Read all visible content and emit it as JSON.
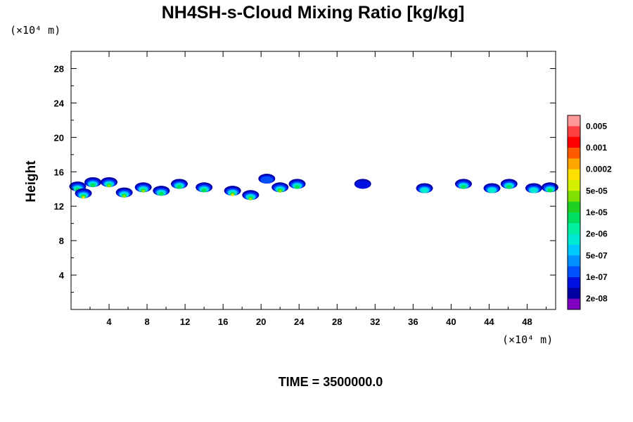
{
  "chart_data": {
    "type": "heatmap",
    "title": "NH4SH-s-Cloud Mixing Ratio [kg/kg]",
    "ylabel": "Height",
    "y_unit": "(×10⁴ m)",
    "x_unit": "(×10⁴ m)",
    "xlim": [
      0,
      51
    ],
    "ylim": [
      0,
      30
    ],
    "x_ticks": [
      "4",
      "8",
      "12",
      "16",
      "20",
      "24",
      "28",
      "32",
      "36",
      "40",
      "44",
      "48"
    ],
    "y_ticks": [
      "4",
      "8",
      "12",
      "16",
      "20",
      "24",
      "28"
    ],
    "colorbar": {
      "labels": [
        "0.005",
        "0.001",
        "0.0002",
        "5e-05",
        "1e-05",
        "2e-06",
        "5e-07",
        "1e-07",
        "2e-08"
      ],
      "colors_top_to_bottom": [
        "#ff9999",
        "#ff4040",
        "#ff0000",
        "#ff5a00",
        "#ffa500",
        "#ffe000",
        "#d4f000",
        "#80e000",
        "#20d020",
        "#00e060",
        "#00f0a0",
        "#00e8d0",
        "#00c8ff",
        "#0090ff",
        "#0050ff",
        "#0010e0",
        "#0000a0",
        "#8000c0"
      ]
    },
    "cloud_patches": [
      {
        "x": 0.7,
        "y": 14.3,
        "peak": 9
      },
      {
        "x": 1.3,
        "y": 13.5,
        "peak": 5
      },
      {
        "x": 2.3,
        "y": 14.8,
        "peak": 8
      },
      {
        "x": 4.0,
        "y": 14.8,
        "peak": 6
      },
      {
        "x": 5.6,
        "y": 13.6,
        "peak": 6
      },
      {
        "x": 7.6,
        "y": 14.2,
        "peak": 7
      },
      {
        "x": 9.5,
        "y": 13.8,
        "peak": 8
      },
      {
        "x": 11.4,
        "y": 14.6,
        "peak": 8
      },
      {
        "x": 14.0,
        "y": 14.2,
        "peak": 8
      },
      {
        "x": 17.0,
        "y": 13.8,
        "peak": 4
      },
      {
        "x": 18.9,
        "y": 13.3,
        "peak": 6
      },
      {
        "x": 20.6,
        "y": 15.2,
        "peak": 13
      },
      {
        "x": 22.0,
        "y": 14.2,
        "peak": 6
      },
      {
        "x": 23.8,
        "y": 14.6,
        "peak": 9
      },
      {
        "x": 30.7,
        "y": 14.6,
        "peak": 15
      },
      {
        "x": 37.2,
        "y": 14.1,
        "peak": 10
      },
      {
        "x": 41.3,
        "y": 14.6,
        "peak": 9
      },
      {
        "x": 44.3,
        "y": 14.1,
        "peak": 10
      },
      {
        "x": 46.1,
        "y": 14.6,
        "peak": 9
      },
      {
        "x": 48.7,
        "y": 14.1,
        "peak": 10
      },
      {
        "x": 50.4,
        "y": 14.2,
        "peak": 9
      }
    ]
  },
  "footer": {
    "time_label": "TIME = 3500000.0"
  },
  "colors": {
    "frame": "#000000",
    "background": "#ffffff"
  }
}
